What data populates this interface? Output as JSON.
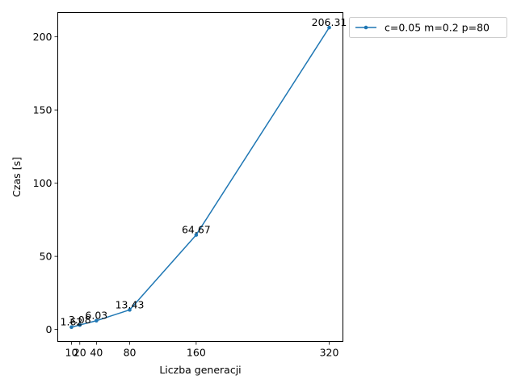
{
  "chart_data": {
    "type": "line",
    "title": "",
    "xlabel": "Liczba generacji",
    "ylabel": "Czas [s]",
    "x": [
      10,
      20,
      40,
      80,
      160,
      320
    ],
    "x_ticks": [
      10,
      20,
      40,
      80,
      160,
      320
    ],
    "y_ticks": [
      0,
      50,
      100,
      150,
      200
    ],
    "xlim": [
      -6.5,
      336.5
    ],
    "ylim": [
      -8.2,
      216.6
    ],
    "grid": false,
    "legend_placement": "outside-top-right",
    "series": [
      {
        "name": "c=0.05 m=0.2 p=80",
        "color": "#1f77b4",
        "marker": "circle",
        "values": [
          1.62,
          3.08,
          6.03,
          13.43,
          64.67,
          206.31
        ],
        "data_labels": [
          "1.62",
          "3.08",
          "6.03",
          "13.43",
          "64.67",
          "206.31"
        ]
      }
    ]
  }
}
